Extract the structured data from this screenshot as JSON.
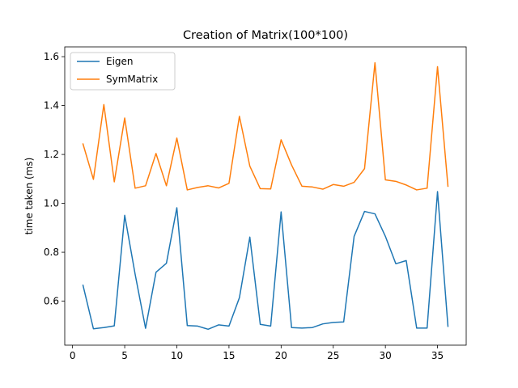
{
  "chart_data": {
    "type": "line",
    "title": "Creation of Matrix(100*100)",
    "xlabel": "",
    "ylabel": "time taken (ms)",
    "xlim": [
      -0.75,
      37.75
    ],
    "ylim": [
      0.42,
      1.64
    ],
    "xticks": [
      0,
      5,
      10,
      15,
      20,
      25,
      30,
      35
    ],
    "yticks": [
      0.6,
      0.8,
      1.0,
      1.2,
      1.4,
      1.6
    ],
    "ytick_labels": [
      "0.6",
      "0.8",
      "1.0",
      "1.2",
      "1.4",
      "1.6"
    ],
    "grid": false,
    "legend_position": "top-left",
    "x": [
      1,
      2,
      3,
      4,
      5,
      6,
      7,
      8,
      9,
      10,
      11,
      12,
      13,
      14,
      15,
      16,
      17,
      18,
      19,
      20,
      21,
      22,
      23,
      24,
      25,
      26,
      27,
      28,
      29,
      30,
      31,
      32,
      33,
      34,
      35,
      36
    ],
    "series": [
      {
        "name": "Eigen",
        "color": "#1f77b4",
        "values": [
          0.665,
          0.487,
          0.492,
          0.499,
          0.951,
          0.71,
          0.489,
          0.718,
          0.755,
          0.982,
          0.5,
          0.498,
          0.485,
          0.503,
          0.498,
          0.614,
          0.862,
          0.505,
          0.498,
          0.965,
          0.492,
          0.49,
          0.492,
          0.507,
          0.513,
          0.515,
          0.865,
          0.967,
          0.957,
          0.865,
          0.753,
          0.766,
          0.49,
          0.49,
          1.048,
          0.497
        ]
      },
      {
        "name": "SymMatrix",
        "color": "#ff7f0e",
        "values": [
          1.243,
          1.098,
          1.404,
          1.088,
          1.349,
          1.062,
          1.072,
          1.204,
          1.072,
          1.267,
          1.055,
          1.065,
          1.072,
          1.063,
          1.082,
          1.356,
          1.152,
          1.06,
          1.059,
          1.26,
          1.157,
          1.07,
          1.067,
          1.058,
          1.077,
          1.07,
          1.086,
          1.142,
          1.575,
          1.096,
          1.09,
          1.075,
          1.055,
          1.062,
          1.559,
          1.07
        ]
      }
    ]
  }
}
